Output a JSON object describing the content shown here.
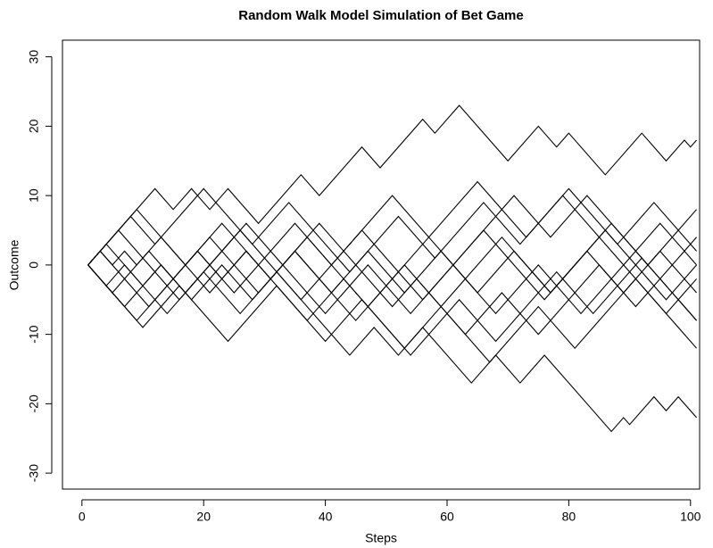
{
  "chart_data": {
    "type": "line",
    "title": "Random Walk Model Simulation of Bet Game",
    "xlabel": "Steps",
    "ylabel": "Outcome",
    "xlim": [
      -3.2,
      101.5
    ],
    "ylim": [
      -32.3,
      32.4
    ],
    "xticks": [
      0,
      20,
      40,
      60,
      80,
      100
    ],
    "yticks": [
      -30,
      -20,
      -10,
      0,
      10,
      20,
      30
    ],
    "series": [
      {
        "color": "#000000",
        "x": [
          1,
          12,
          15,
          18,
          21,
          24,
          29,
          36,
          39,
          46,
          49,
          56,
          58,
          62,
          70,
          75,
          78,
          80,
          86,
          92,
          96,
          99,
          100,
          101
        ],
        "values": [
          0,
          11,
          8,
          11,
          8,
          11,
          6,
          13,
          10,
          17,
          14,
          21,
          19,
          23,
          15,
          20,
          17,
          19,
          13,
          19,
          15,
          18,
          17,
          18
        ]
      },
      {
        "color": "#000000",
        "x": [
          1,
          4,
          14,
          20,
          26,
          32,
          44,
          48,
          52,
          56,
          64,
          68,
          72,
          76,
          87,
          89,
          90,
          94,
          96,
          98,
          101
        ],
        "values": [
          0,
          3,
          -7,
          -1,
          -7,
          -1,
          -13,
          -9,
          -13,
          -9,
          -17,
          -13,
          -17,
          -13,
          -24,
          -22,
          -23,
          -19,
          -21,
          -19,
          -22
        ]
      },
      {
        "color": "#000000",
        "x": [
          1,
          6,
          16,
          26,
          36,
          46,
          56,
          66,
          76,
          86,
          96,
          101
        ],
        "values": [
          0,
          5,
          -5,
          5,
          -5,
          5,
          -5,
          5,
          -5,
          5,
          -5,
          0
        ]
      },
      {
        "color": "#000000",
        "x": [
          1,
          9,
          19,
          25,
          35,
          41,
          51,
          57,
          65,
          73,
          79,
          89,
          95,
          101
        ],
        "values": [
          0,
          -8,
          2,
          -4,
          6,
          0,
          10,
          4,
          12,
          4,
          10,
          0,
          6,
          0
        ]
      },
      {
        "color": "#000000",
        "x": [
          1,
          7,
          13,
          17,
          27,
          33,
          39,
          51,
          55,
          63,
          69,
          75,
          85,
          91,
          101
        ],
        "values": [
          0,
          -6,
          0,
          -4,
          6,
          0,
          6,
          -6,
          -2,
          -10,
          -4,
          -10,
          0,
          -6,
          4
        ]
      },
      {
        "color": "#000000",
        "x": [
          1,
          3,
          11,
          21,
          29,
          35,
          45,
          53,
          59,
          69,
          77,
          87,
          93,
          101
        ],
        "values": [
          0,
          2,
          -6,
          4,
          -4,
          2,
          -8,
          0,
          -6,
          4,
          -4,
          6,
          0,
          8
        ]
      },
      {
        "color": "#000000",
        "x": [
          1,
          9,
          17,
          23,
          31,
          37,
          47,
          57,
          61,
          71,
          77,
          83,
          93,
          101
        ],
        "values": [
          0,
          8,
          0,
          6,
          -2,
          4,
          -6,
          4,
          0,
          10,
          4,
          10,
          0,
          -8
        ]
      },
      {
        "color": "#000000",
        "x": [
          1,
          5,
          13,
          21,
          27,
          37,
          43,
          53,
          59,
          67,
          75,
          81,
          91,
          101
        ],
        "values": [
          0,
          -4,
          4,
          -4,
          2,
          -8,
          -2,
          -12,
          -6,
          -14,
          -6,
          -12,
          -2,
          -12
        ]
      },
      {
        "color": "#000000",
        "x": [
          1,
          8,
          12,
          20,
          28,
          34,
          44,
          52,
          58,
          66,
          72,
          80,
          88,
          94,
          101
        ],
        "values": [
          0,
          7,
          3,
          11,
          3,
          9,
          -1,
          7,
          1,
          9,
          3,
          11,
          3,
          9,
          2
        ]
      },
      {
        "color": "#000000",
        "x": [
          1,
          10,
          16,
          24,
          32,
          40,
          46,
          54,
          62,
          68,
          78,
          84,
          92,
          101
        ],
        "values": [
          0,
          -9,
          -3,
          -11,
          -3,
          -11,
          -5,
          -13,
          -5,
          -11,
          -1,
          -7,
          1,
          -8
        ]
      },
      {
        "color": "#000000",
        "x": [
          1,
          3,
          5,
          7,
          9,
          11,
          15,
          19,
          23,
          27,
          31,
          35,
          41,
          47,
          53,
          59,
          65,
          71,
          77,
          83,
          89,
          95,
          101
        ],
        "values": [
          0,
          2,
          0,
          2,
          0,
          2,
          -2,
          2,
          -2,
          2,
          -2,
          2,
          -4,
          2,
          -4,
          2,
          -4,
          2,
          -4,
          2,
          -4,
          2,
          -4
        ]
      },
      {
        "color": "#000000",
        "x": [
          1,
          4,
          7,
          10,
          13,
          18,
          23,
          28,
          33,
          40,
          47,
          54,
          61,
          68,
          75,
          82,
          89,
          96,
          101
        ],
        "values": [
          0,
          -3,
          0,
          -3,
          0,
          -5,
          0,
          -5,
          0,
          -7,
          0,
          -7,
          0,
          -7,
          0,
          -7,
          0,
          -7,
          -2
        ]
      }
    ]
  }
}
